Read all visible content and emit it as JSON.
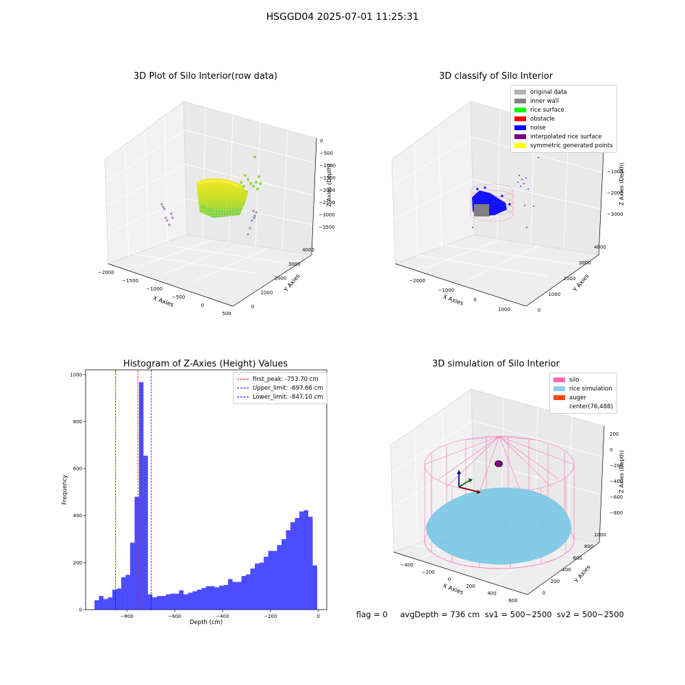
{
  "suptitle": "HSGGD04 2025-07-01 11:25:31",
  "status_line": "flag = 0     avgDepth = 736 cm  sv1 = 500~2500  sv2 = 500~2500",
  "chart_data": [
    {
      "type": "scatter",
      "title": "3D Plot of Silo Interior(row data)",
      "xlabel": "X Axies",
      "ylabel": "Y Axies",
      "zlabel": "Z Axies (Depth)",
      "x_ticks": [
        "−2000",
        "−1500",
        "−1000",
        "−500",
        "0",
        "500"
      ],
      "y_ticks": [
        "0",
        "1000",
        "2000",
        "3000",
        "4000"
      ],
      "z_ticks": [
        "0",
        "−500",
        "−1000",
        "−1500",
        "−2000",
        "−2500",
        "−3000",
        "−3500"
      ],
      "colormap": [
        "#f4e61e",
        "#8fd744",
        "#35b779",
        "#a487b5"
      ]
    },
    {
      "type": "scatter",
      "title": "3D classify of Silo Interior",
      "xlabel": "X Axies",
      "ylabel": "Y Axies",
      "zlabel": "Z Axies (Depth)",
      "x_ticks": [
        "−2000",
        "−1000",
        "0",
        "1000"
      ],
      "y_ticks": [
        "0",
        "1000",
        "2000",
        "3000",
        "4000"
      ],
      "z_ticks": [
        "−1000",
        "−2000",
        "−3000"
      ],
      "legend": [
        {
          "label": "original data",
          "color": "#b3b3b3"
        },
        {
          "label": "inner wall",
          "color": "#808080"
        },
        {
          "label": "rice surface",
          "color": "#00ff00"
        },
        {
          "label": "obstacle",
          "color": "#ff0000"
        },
        {
          "label": "noise",
          "color": "#0000ff"
        },
        {
          "label": "interpolated rice surface",
          "color": "#800080"
        },
        {
          "label": "symmetric generated points",
          "color": "#ffff00"
        }
      ]
    },
    {
      "type": "bar",
      "title": "Histogram of Z-Axies (Height) Values",
      "xlabel": "Depth (cm)",
      "ylabel": "Frequency",
      "xlim": [
        -972,
        35
      ],
      "ylim": [
        0,
        1020
      ],
      "x_ticks": [
        {
          "value": -800,
          "label": "−800"
        },
        {
          "value": -600,
          "label": "−600"
        },
        {
          "value": -400,
          "label": "−400"
        },
        {
          "value": -200,
          "label": "−200"
        },
        {
          "value": 0,
          "label": "0"
        }
      ],
      "y_ticks": [
        {
          "value": 0,
          "label": "0"
        },
        {
          "value": 200,
          "label": "200"
        },
        {
          "value": 400,
          "label": "400"
        },
        {
          "value": 600,
          "label": "600"
        },
        {
          "value": 800,
          "label": "800"
        },
        {
          "value": 1000,
          "label": "1000"
        }
      ],
      "bar_color": "#0000ff",
      "bin_start": -935,
      "bin_width": 18.6,
      "values": [
        40,
        58,
        45,
        52,
        85,
        90,
        138,
        148,
        285,
        480,
        968,
        655,
        65,
        53,
        58,
        58,
        65,
        68,
        68,
        82,
        65,
        72,
        78,
        85,
        92,
        100,
        100,
        95,
        102,
        105,
        130,
        118,
        118,
        143,
        150,
        175,
        196,
        200,
        225,
        250,
        250,
        275,
        300,
        338,
        372,
        390,
        418,
        423,
        395,
        188
      ],
      "vlines": [
        {
          "label": "first_peak: -753.70 cm",
          "value": -753.7,
          "color": "#ff0000"
        },
        {
          "label": "Upper_limit: -697.66 cm",
          "value": -697.66,
          "color": "#0000ff"
        },
        {
          "label": "Lower_limit: -847.10 cm",
          "value": -847.1,
          "color": "#0000ff"
        }
      ],
      "legend_position": "top-right"
    },
    {
      "type": "scatter",
      "title": "3D simulation of Silo Interior",
      "xlabel": "X Axies",
      "ylabel": "Y Axies",
      "zlabel": "Z Axies (Depth)",
      "x_ticks": [
        "−400",
        "−200",
        "0",
        "200",
        "400",
        "600"
      ],
      "y_ticks": [
        "0",
        "200",
        "400",
        "600",
        "800",
        "1000"
      ],
      "z_ticks": [
        "200",
        "0",
        "−200",
        "−400",
        "−600",
        "−800"
      ],
      "legend": [
        {
          "label": "silo",
          "color": "#ff69b4"
        },
        {
          "label": "rice simulation",
          "color": "#87ceeb"
        },
        {
          "label": "auger",
          "color": "#ff4500"
        },
        {
          "label": "center(76,488)",
          "color": ""
        }
      ]
    }
  ]
}
